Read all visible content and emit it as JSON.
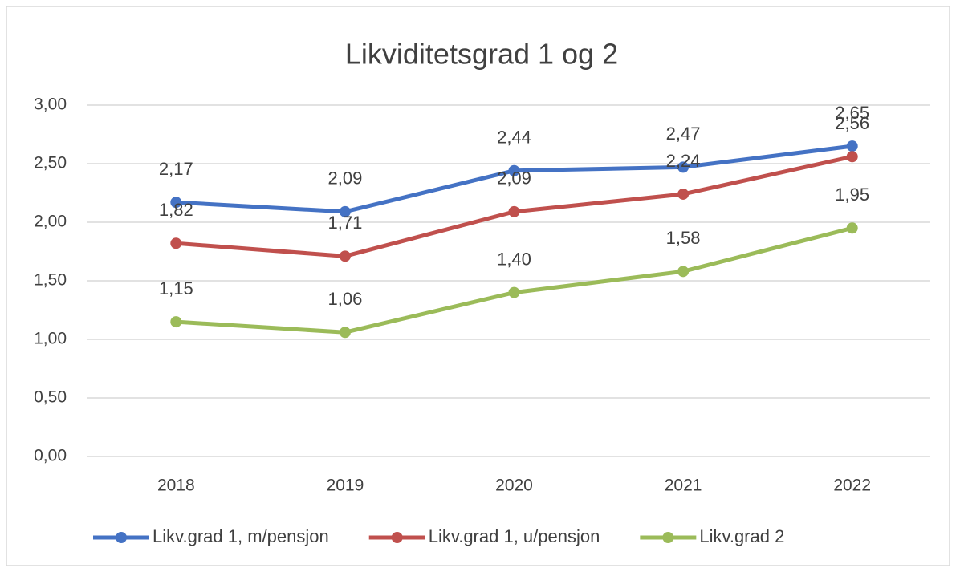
{
  "chart_data": {
    "type": "line",
    "title": "Likviditetsgrad 1 og 2",
    "categories": [
      "2018",
      "2019",
      "2020",
      "2021",
      "2022"
    ],
    "series": [
      {
        "name": "Likv.grad 1, m/pensjon",
        "color": "#4472c4",
        "values": [
          2.17,
          2.09,
          2.44,
          2.47,
          2.65
        ],
        "value_labels": [
          "2,17",
          "2,09",
          "2,44",
          "2,47",
          "2,65"
        ]
      },
      {
        "name": "Likv.grad 1, u/pensjon",
        "color": "#c0504d",
        "values": [
          1.82,
          1.71,
          2.09,
          2.24,
          2.56
        ],
        "value_labels": [
          "1,82",
          "1,71",
          "2,09",
          "2,24",
          "2,56"
        ]
      },
      {
        "name": "Likv.grad 2",
        "color": "#9bbb59",
        "values": [
          1.15,
          1.06,
          1.4,
          1.58,
          1.95
        ],
        "value_labels": [
          "1,15",
          "1,06",
          "1,40",
          "1,58",
          "1,95"
        ]
      }
    ],
    "ylim": [
      0,
      3
    ],
    "yticks": [
      {
        "value": 0,
        "label": "0,00"
      },
      {
        "value": 0.5,
        "label": "0,50"
      },
      {
        "value": 1,
        "label": "1,00"
      },
      {
        "value": 1.5,
        "label": "1,50"
      },
      {
        "value": 2,
        "label": "2,00"
      },
      {
        "value": 2.5,
        "label": "2,50"
      },
      {
        "value": 3,
        "label": "3,00"
      }
    ],
    "grid": true,
    "legend": "bottom"
  }
}
